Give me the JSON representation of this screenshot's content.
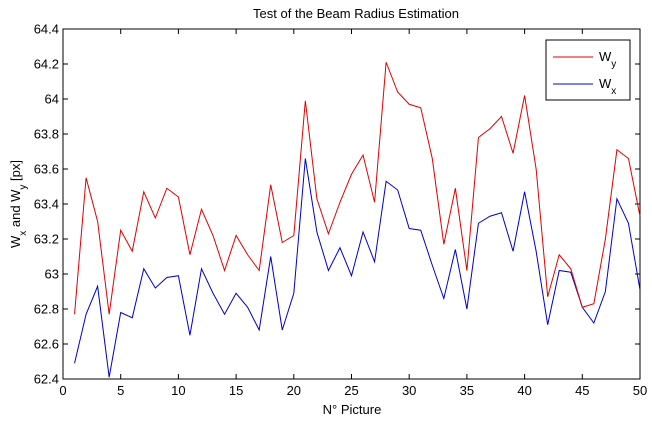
{
  "chart_data": {
    "type": "line",
    "title": "Test of the Beam Radius Estimation",
    "xlabel": "N° Picture",
    "ylabel": {
      "base": "W",
      "sub1": "x",
      "mid": " and W",
      "sub2": "y",
      "tail": " [px]"
    },
    "xlim": [
      0,
      50
    ],
    "ylim": [
      62.4,
      64.4
    ],
    "xticks": [
      0,
      5,
      10,
      15,
      20,
      25,
      30,
      35,
      40,
      45,
      50
    ],
    "yticks": [
      62.4,
      62.6,
      62.8,
      63,
      63.2,
      63.4,
      63.6,
      63.8,
      64,
      64.2,
      64.4
    ],
    "ytick_labels": [
      "62.4",
      "62.6",
      "62.8",
      "63",
      "63.2",
      "63.4",
      "63.6",
      "63.8",
      "64",
      "64.2",
      "64.4"
    ],
    "grid": false,
    "legend_position": "top-right",
    "x": [
      1,
      2,
      3,
      4,
      5,
      6,
      7,
      8,
      9,
      10,
      11,
      12,
      13,
      14,
      15,
      16,
      17,
      18,
      19,
      20,
      21,
      22,
      23,
      24,
      25,
      26,
      27,
      28,
      29,
      30,
      31,
      32,
      33,
      34,
      35,
      36,
      37,
      38,
      39,
      40,
      41,
      42,
      43,
      44,
      45,
      46,
      47,
      48,
      49,
      50
    ],
    "series": [
      {
        "name": "W",
        "sub": "y",
        "color": "#e00000",
        "values": [
          62.77,
          63.55,
          63.3,
          62.77,
          63.25,
          63.13,
          63.47,
          63.32,
          63.49,
          63.44,
          63.11,
          63.37,
          63.22,
          63.02,
          63.22,
          63.11,
          63.02,
          63.51,
          63.18,
          63.22,
          63.99,
          63.43,
          63.23,
          63.41,
          63.57,
          63.68,
          63.41,
          64.21,
          64.04,
          63.97,
          63.95,
          63.66,
          63.17,
          63.49,
          63.02,
          63.78,
          63.83,
          63.9,
          63.69,
          64.02,
          63.6,
          62.87,
          63.11,
          63.03,
          62.81,
          62.83,
          63.2,
          63.71,
          63.66,
          63.33
        ]
      },
      {
        "name": "W",
        "sub": "x",
        "color": "#0000cc",
        "values": [
          62.49,
          62.77,
          62.93,
          62.41,
          62.78,
          62.75,
          63.03,
          62.92,
          62.98,
          62.99,
          62.65,
          63.03,
          62.89,
          62.77,
          62.89,
          62.81,
          62.68,
          63.1,
          62.68,
          62.89,
          63.66,
          63.24,
          63.02,
          63.15,
          62.99,
          63.24,
          63.07,
          63.53,
          63.48,
          63.26,
          63.25,
          63.05,
          62.86,
          63.14,
          62.8,
          63.29,
          63.33,
          63.35,
          63.13,
          63.47,
          63.13,
          62.71,
          63.02,
          63.01,
          62.81,
          62.72,
          62.9,
          63.43,
          63.29,
          62.91
        ]
      }
    ]
  }
}
